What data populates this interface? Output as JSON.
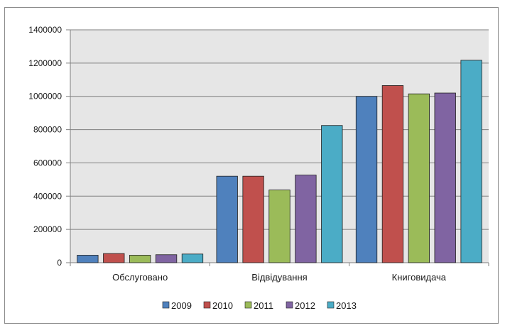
{
  "chart_data": {
    "type": "bar",
    "categories": [
      "Обслуговано",
      "Відвідування",
      "Книговидача"
    ],
    "series": [
      {
        "name": "2009",
        "color": "#4f81bd",
        "values": [
          45000,
          520000,
          1000000
        ]
      },
      {
        "name": "2010",
        "color": "#c0504d",
        "values": [
          55000,
          520000,
          1065000
        ]
      },
      {
        "name": "2011",
        "color": "#9bbb59",
        "values": [
          45000,
          437000,
          1015000
        ]
      },
      {
        "name": "2012",
        "color": "#8064a2",
        "values": [
          48000,
          527000,
          1020000
        ]
      },
      {
        "name": "2013",
        "color": "#4bacc6",
        "values": [
          52000,
          825000,
          1217000
        ]
      }
    ],
    "ylim": [
      0,
      1400000
    ],
    "yticks": [
      "0",
      "200000",
      "400000",
      "600000",
      "800000",
      "1000000",
      "1200000",
      "1400000"
    ],
    "grid": true,
    "legend": "bottom"
  }
}
